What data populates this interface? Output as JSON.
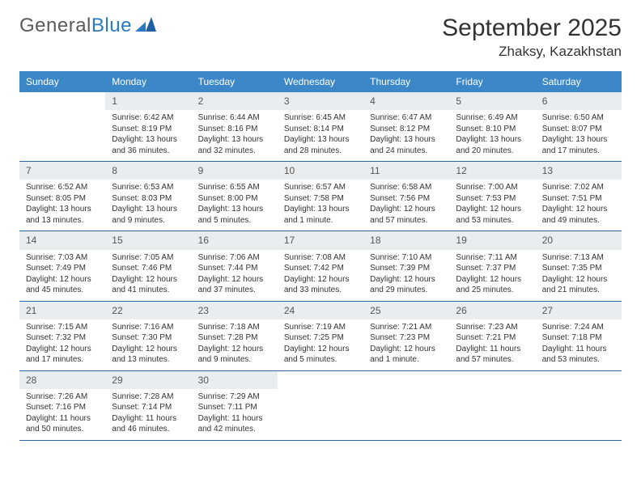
{
  "logo": {
    "text1": "General",
    "text2": "Blue"
  },
  "title": "September 2025",
  "location": "Zhaksy, Kazakhstan",
  "colors": {
    "headerBg": "#3b87c8",
    "headerText": "#ffffff",
    "dayNumBg": "#e9edf0",
    "bodyText": "#333333",
    "weekBorder": "#2a6aa8"
  },
  "dayNames": [
    "Sunday",
    "Monday",
    "Tuesday",
    "Wednesday",
    "Thursday",
    "Friday",
    "Saturday"
  ],
  "weeks": [
    [
      {
        "n": "",
        "sr": "",
        "ss": "",
        "dl": ""
      },
      {
        "n": "1",
        "sr": "Sunrise: 6:42 AM",
        "ss": "Sunset: 8:19 PM",
        "dl": "Daylight: 13 hours and 36 minutes."
      },
      {
        "n": "2",
        "sr": "Sunrise: 6:44 AM",
        "ss": "Sunset: 8:16 PM",
        "dl": "Daylight: 13 hours and 32 minutes."
      },
      {
        "n": "3",
        "sr": "Sunrise: 6:45 AM",
        "ss": "Sunset: 8:14 PM",
        "dl": "Daylight: 13 hours and 28 minutes."
      },
      {
        "n": "4",
        "sr": "Sunrise: 6:47 AM",
        "ss": "Sunset: 8:12 PM",
        "dl": "Daylight: 13 hours and 24 minutes."
      },
      {
        "n": "5",
        "sr": "Sunrise: 6:49 AM",
        "ss": "Sunset: 8:10 PM",
        "dl": "Daylight: 13 hours and 20 minutes."
      },
      {
        "n": "6",
        "sr": "Sunrise: 6:50 AM",
        "ss": "Sunset: 8:07 PM",
        "dl": "Daylight: 13 hours and 17 minutes."
      }
    ],
    [
      {
        "n": "7",
        "sr": "Sunrise: 6:52 AM",
        "ss": "Sunset: 8:05 PM",
        "dl": "Daylight: 13 hours and 13 minutes."
      },
      {
        "n": "8",
        "sr": "Sunrise: 6:53 AM",
        "ss": "Sunset: 8:03 PM",
        "dl": "Daylight: 13 hours and 9 minutes."
      },
      {
        "n": "9",
        "sr": "Sunrise: 6:55 AM",
        "ss": "Sunset: 8:00 PM",
        "dl": "Daylight: 13 hours and 5 minutes."
      },
      {
        "n": "10",
        "sr": "Sunrise: 6:57 AM",
        "ss": "Sunset: 7:58 PM",
        "dl": "Daylight: 13 hours and 1 minute."
      },
      {
        "n": "11",
        "sr": "Sunrise: 6:58 AM",
        "ss": "Sunset: 7:56 PM",
        "dl": "Daylight: 12 hours and 57 minutes."
      },
      {
        "n": "12",
        "sr": "Sunrise: 7:00 AM",
        "ss": "Sunset: 7:53 PM",
        "dl": "Daylight: 12 hours and 53 minutes."
      },
      {
        "n": "13",
        "sr": "Sunrise: 7:02 AM",
        "ss": "Sunset: 7:51 PM",
        "dl": "Daylight: 12 hours and 49 minutes."
      }
    ],
    [
      {
        "n": "14",
        "sr": "Sunrise: 7:03 AM",
        "ss": "Sunset: 7:49 PM",
        "dl": "Daylight: 12 hours and 45 minutes."
      },
      {
        "n": "15",
        "sr": "Sunrise: 7:05 AM",
        "ss": "Sunset: 7:46 PM",
        "dl": "Daylight: 12 hours and 41 minutes."
      },
      {
        "n": "16",
        "sr": "Sunrise: 7:06 AM",
        "ss": "Sunset: 7:44 PM",
        "dl": "Daylight: 12 hours and 37 minutes."
      },
      {
        "n": "17",
        "sr": "Sunrise: 7:08 AM",
        "ss": "Sunset: 7:42 PM",
        "dl": "Daylight: 12 hours and 33 minutes."
      },
      {
        "n": "18",
        "sr": "Sunrise: 7:10 AM",
        "ss": "Sunset: 7:39 PM",
        "dl": "Daylight: 12 hours and 29 minutes."
      },
      {
        "n": "19",
        "sr": "Sunrise: 7:11 AM",
        "ss": "Sunset: 7:37 PM",
        "dl": "Daylight: 12 hours and 25 minutes."
      },
      {
        "n": "20",
        "sr": "Sunrise: 7:13 AM",
        "ss": "Sunset: 7:35 PM",
        "dl": "Daylight: 12 hours and 21 minutes."
      }
    ],
    [
      {
        "n": "21",
        "sr": "Sunrise: 7:15 AM",
        "ss": "Sunset: 7:32 PM",
        "dl": "Daylight: 12 hours and 17 minutes."
      },
      {
        "n": "22",
        "sr": "Sunrise: 7:16 AM",
        "ss": "Sunset: 7:30 PM",
        "dl": "Daylight: 12 hours and 13 minutes."
      },
      {
        "n": "23",
        "sr": "Sunrise: 7:18 AM",
        "ss": "Sunset: 7:28 PM",
        "dl": "Daylight: 12 hours and 9 minutes."
      },
      {
        "n": "24",
        "sr": "Sunrise: 7:19 AM",
        "ss": "Sunset: 7:25 PM",
        "dl": "Daylight: 12 hours and 5 minutes."
      },
      {
        "n": "25",
        "sr": "Sunrise: 7:21 AM",
        "ss": "Sunset: 7:23 PM",
        "dl": "Daylight: 12 hours and 1 minute."
      },
      {
        "n": "26",
        "sr": "Sunrise: 7:23 AM",
        "ss": "Sunset: 7:21 PM",
        "dl": "Daylight: 11 hours and 57 minutes."
      },
      {
        "n": "27",
        "sr": "Sunrise: 7:24 AM",
        "ss": "Sunset: 7:18 PM",
        "dl": "Daylight: 11 hours and 53 minutes."
      }
    ],
    [
      {
        "n": "28",
        "sr": "Sunrise: 7:26 AM",
        "ss": "Sunset: 7:16 PM",
        "dl": "Daylight: 11 hours and 50 minutes."
      },
      {
        "n": "29",
        "sr": "Sunrise: 7:28 AM",
        "ss": "Sunset: 7:14 PM",
        "dl": "Daylight: 11 hours and 46 minutes."
      },
      {
        "n": "30",
        "sr": "Sunrise: 7:29 AM",
        "ss": "Sunset: 7:11 PM",
        "dl": "Daylight: 11 hours and 42 minutes."
      },
      {
        "n": "",
        "sr": "",
        "ss": "",
        "dl": ""
      },
      {
        "n": "",
        "sr": "",
        "ss": "",
        "dl": ""
      },
      {
        "n": "",
        "sr": "",
        "ss": "",
        "dl": ""
      },
      {
        "n": "",
        "sr": "",
        "ss": "",
        "dl": ""
      }
    ]
  ]
}
